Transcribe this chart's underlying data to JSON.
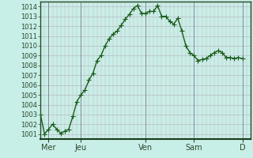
{
  "background_color": "#c8eee8",
  "plot_bg_color": "#c8eee8",
  "line_color": "#1a5c1a",
  "marker_color": "#1a5c1a",
  "grid_color_h": "#b0b0c0",
  "grid_color_v_minor": "#d0b0b0",
  "grid_color_v_major": "#888899",
  "axis_color": "#2a4a2a",
  "ylim": [
    1000.5,
    1014.5
  ],
  "yticks": [
    1001,
    1002,
    1003,
    1004,
    1005,
    1006,
    1007,
    1008,
    1009,
    1010,
    1011,
    1012,
    1013,
    1014
  ],
  "day_labels": [
    "Mer",
    "Jeu",
    "Ven",
    "Sam",
    "D"
  ],
  "day_positions": [
    2,
    10,
    26,
    38,
    50
  ],
  "xlim": [
    0,
    52
  ],
  "x_values": [
    0,
    1,
    2,
    3,
    4,
    5,
    6,
    7,
    8,
    9,
    10,
    11,
    12,
    13,
    14,
    15,
    16,
    17,
    18,
    19,
    20,
    21,
    22,
    23,
    24,
    25,
    26,
    27,
    28,
    29,
    30,
    31,
    32,
    33,
    34,
    35,
    36,
    37,
    38,
    39,
    40,
    41,
    42,
    43,
    44,
    45,
    46,
    47,
    48,
    49,
    50
  ],
  "y_values": [
    1003.0,
    1001.0,
    1001.5,
    1002.0,
    1001.5,
    1001.1,
    1001.3,
    1001.5,
    1002.8,
    1004.3,
    1005.0,
    1005.5,
    1006.5,
    1007.2,
    1008.5,
    1009.0,
    1010.0,
    1010.7,
    1011.2,
    1011.5,
    1012.1,
    1012.7,
    1013.2,
    1013.8,
    1014.1,
    1013.3,
    1013.3,
    1013.5,
    1013.5,
    1014.1,
    1013.0,
    1013.0,
    1012.5,
    1012.2,
    1012.8,
    1011.5,
    1010.0,
    1009.3,
    1009.0,
    1008.5,
    1008.6,
    1008.7,
    1009.0,
    1009.3,
    1009.5,
    1009.3,
    1008.8,
    1008.8,
    1008.7,
    1008.8,
    1008.7
  ],
  "tick_fontsize": 6,
  "label_fontsize": 7,
  "linewidth": 1.0,
  "markersize": 2.2,
  "spine_color": "#2a4a2a"
}
